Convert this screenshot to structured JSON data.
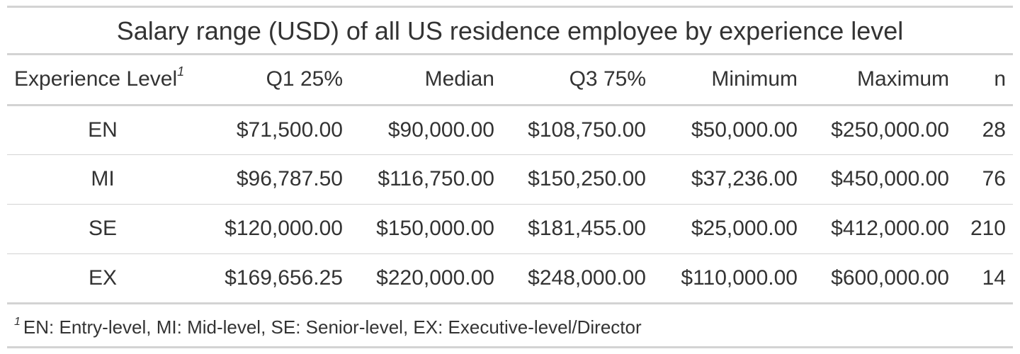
{
  "title": "Salary range (USD) of all US residence employee by experience level",
  "headers": {
    "experience_level": "Experience Level",
    "experience_level_marker": "1",
    "q1": "Q1 25%",
    "median": "Median",
    "q3": "Q3 75%",
    "minimum": "Minimum",
    "maximum": "Maximum",
    "n": "n"
  },
  "rows": [
    {
      "level": "EN",
      "q1": "$71,500.00",
      "median": "$90,000.00",
      "q3": "$108,750.00",
      "minimum": "$50,000.00",
      "maximum": "$250,000.00",
      "n": "28"
    },
    {
      "level": "MI",
      "q1": "$96,787.50",
      "median": "$116,750.00",
      "q3": "$150,250.00",
      "minimum": "$37,236.00",
      "maximum": "$450,000.00",
      "n": "76"
    },
    {
      "level": "SE",
      "q1": "$120,000.00",
      "median": "$150,000.00",
      "q3": "$181,455.00",
      "minimum": "$25,000.00",
      "maximum": "$412,000.00",
      "n": "210"
    },
    {
      "level": "EX",
      "q1": "$169,656.25",
      "median": "$220,000.00",
      "q3": "$248,000.00",
      "minimum": "$110,000.00",
      "maximum": "$600,000.00",
      "n": "14"
    }
  ],
  "footnote": {
    "marker": "1",
    "text": "EN: Entry-level, MI: Mid-level, SE: Senior-level, EX: Executive-level/Director"
  }
}
